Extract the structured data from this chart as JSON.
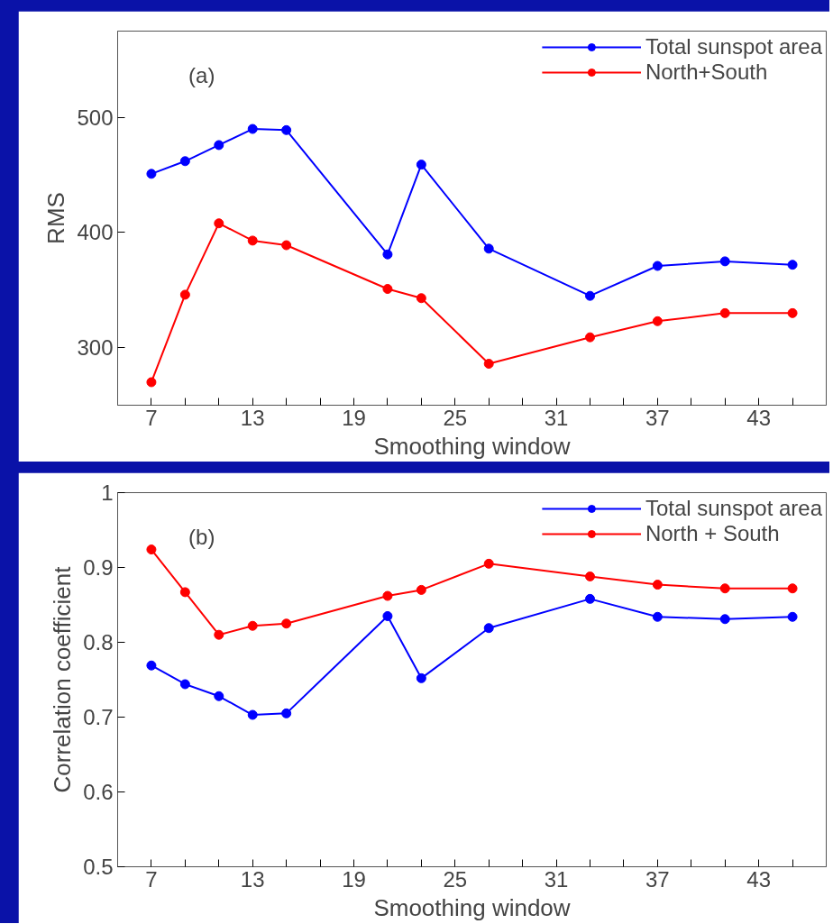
{
  "chart_data": [
    {
      "type": "line",
      "xlabel": "Smoothing window",
      "ylabel": "RMS",
      "annotations": [
        "(a)"
      ],
      "x": [
        7,
        9,
        11,
        13,
        15,
        21,
        23,
        27,
        33,
        37,
        41,
        45
      ],
      "series": [
        {
          "name": "Total sunspot area",
          "color": "#0000ff",
          "values": [
            451,
            462,
            476,
            490,
            489,
            381,
            459,
            386,
            345,
            371,
            375,
            372
          ]
        },
        {
          "name": "North+South",
          "color": "#ff0000",
          "values": [
            270,
            346,
            408,
            393,
            389,
            351,
            343,
            286,
            309,
            323,
            330,
            330
          ]
        }
      ],
      "xlim": [
        5,
        47
      ],
      "ylim": [
        250,
        575
      ],
      "xticks": [
        7,
        {
          "value": 9,
          "label": null
        },
        {
          "value": 11,
          "label": null
        },
        13,
        {
          "value": 15,
          "label": null
        },
        {
          "value": 17,
          "label": null
        },
        19,
        {
          "value": 21,
          "label": null
        },
        {
          "value": 23,
          "label": null
        },
        25,
        {
          "value": 27,
          "label": null
        },
        {
          "value": 29,
          "label": null
        },
        31,
        {
          "value": 33,
          "label": null
        },
        {
          "value": 35,
          "label": null
        },
        37,
        {
          "value": 39,
          "label": null
        },
        {
          "value": 41,
          "label": null
        },
        43,
        {
          "value": 45,
          "label": null
        }
      ],
      "yticks": [
        300,
        400,
        500
      ],
      "marker": "circle",
      "line_style": "solid",
      "grid": false,
      "legend": "top right"
    },
    {
      "type": "line",
      "xlabel": "Smoothing window",
      "ylabel": "Correlation coefficient",
      "annotations": [
        "(b)"
      ],
      "x": [
        7,
        9,
        11,
        13,
        15,
        21,
        23,
        27,
        33,
        37,
        41,
        45
      ],
      "series": [
        {
          "name": "Total sunspot area",
          "color": "#0000ff",
          "values": [
            0.769,
            0.744,
            0.728,
            0.703,
            0.705,
            0.835,
            0.752,
            0.819,
            0.858,
            0.834,
            0.831,
            0.834
          ]
        },
        {
          "name": "North + South",
          "color": "#ff0000",
          "values": [
            0.924,
            0.867,
            0.81,
            0.822,
            0.825,
            0.862,
            0.87,
            0.905,
            0.888,
            0.877,
            0.872,
            0.872
          ]
        }
      ],
      "xlim": [
        5,
        47
      ],
      "ylim": [
        0.5,
        1
      ],
      "xticks": [
        7,
        {
          "value": 9,
          "label": null
        },
        {
          "value": 11,
          "label": null
        },
        13,
        {
          "value": 15,
          "label": null
        },
        {
          "value": 17,
          "label": null
        },
        19,
        {
          "value": 21,
          "label": null
        },
        {
          "value": 23,
          "label": null
        },
        25,
        {
          "value": 27,
          "label": null
        },
        {
          "value": 29,
          "label": null
        },
        31,
        {
          "value": 33,
          "label": null
        },
        {
          "value": 35,
          "label": null
        },
        37,
        {
          "value": 39,
          "label": null
        },
        {
          "value": 41,
          "label": null
        },
        43,
        {
          "value": 45,
          "label": null
        }
      ],
      "yticks": [
        0.5,
        0.6,
        0.7,
        0.8,
        0.9,
        1
      ],
      "marker": "circle",
      "line_style": "solid",
      "grid": false,
      "legend": "top right"
    }
  ]
}
